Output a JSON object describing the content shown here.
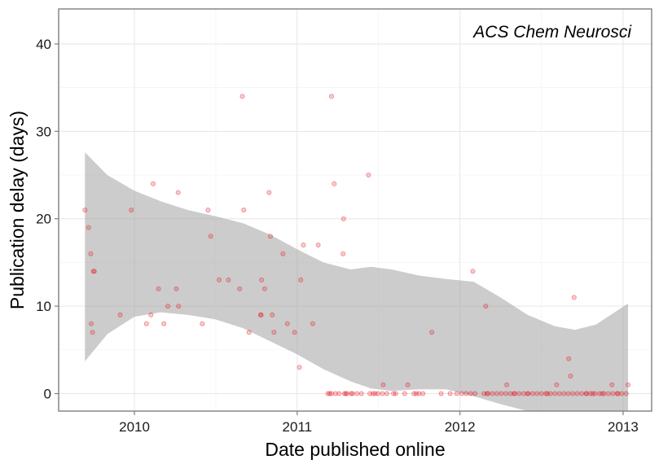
{
  "chart_data": {
    "type": "scatter",
    "title": "",
    "annotation": "ACS Chem Neurosci",
    "xlabel": "Date published online",
    "ylabel": "Publication delay (days)",
    "x_axis_type": "date",
    "xlim": [
      "2009-07-15",
      "2013-03-06"
    ],
    "ylim": [
      -2,
      44
    ],
    "x_ticks": [
      {
        "label": "2010",
        "value": "2010-01-01"
      },
      {
        "label": "2011",
        "value": "2011-01-01"
      },
      {
        "label": "2012",
        "value": "2012-01-01"
      },
      {
        "label": "2013",
        "value": "2013-01-01"
      }
    ],
    "y_ticks": [
      0,
      10,
      20,
      30,
      40
    ],
    "grid": true,
    "point_color": "#e8111e",
    "band_color": "#999999",
    "series": [
      {
        "x": [
          "2009-09-12",
          "2009-09-20",
          "2009-09-25",
          "2009-09-26",
          "2009-09-29",
          "2009-10-01",
          "2009-10-03",
          "2009-11-30",
          "2009-12-25",
          "2010-01-28",
          "2010-02-07",
          "2010-02-12",
          "2010-02-24",
          "2010-03-08",
          "2010-03-17",
          "2010-04-05",
          "2010-04-09",
          "2010-04-10",
          "2010-06-02",
          "2010-06-15",
          "2010-06-21",
          "2010-07-10",
          "2010-07-31",
          "2010-08-25",
          "2010-08-31",
          "2010-09-03",
          "2010-09-15",
          "2010-10-11",
          "2010-10-12",
          "2010-10-13",
          "2010-10-20",
          "2010-10-30",
          "2010-11-02",
          "2010-11-06",
          "2010-11-10",
          "2010-11-30",
          "2010-12-10",
          "2010-12-26",
          "2011-01-06",
          "2011-01-09",
          "2011-01-15",
          "2011-02-05",
          "2011-02-17",
          "2011-03-19",
          "2011-04-14",
          "2011-04-15",
          "2011-05-05",
          "2011-05-15",
          "2011-05-25",
          "2011-06-10",
          "2011-06-20",
          "2011-07-01",
          "2011-07-11",
          "2011-07-21",
          "2011-08-10",
          "2011-08-30",
          "2011-09-20",
          "2011-09-25",
          "2011-10-10",
          "2011-10-30",
          "2011-11-20",
          "2011-12-10",
          "2011-12-25",
          "2012-01-05",
          "2012-01-15",
          "2012-01-25",
          "2012-02-04",
          "2012-02-24",
          "2012-03-04",
          "2012-03-14",
          "2012-03-24",
          "2012-04-03",
          "2012-04-13",
          "2012-04-23",
          "2012-05-03",
          "2012-05-13",
          "2012-05-23",
          "2012-06-02",
          "2012-06-12",
          "2012-06-22",
          "2012-07-02",
          "2012-07-12",
          "2012-07-22",
          "2012-08-01",
          "2012-08-11",
          "2012-08-21",
          "2012-08-31",
          "2012-09-10",
          "2012-09-20",
          "2012-09-30",
          "2012-10-10",
          "2012-10-20",
          "2012-10-30",
          "2012-11-09",
          "2012-11-19",
          "2012-11-29",
          "2012-12-09",
          "2012-12-19",
          "2012-12-29",
          "2013-01-08",
          "2011-03-11",
          "2011-03-15",
          "2011-03-19",
          "2011-04-05",
          "2011-04-17",
          "2011-04-23",
          "2011-07-13",
          "2011-09-06",
          "2012-01-30",
          "2012-02-28",
          "2012-04-15",
          "2012-08-05",
          "2012-09-01",
          "2012-09-05",
          "2012-09-13",
          "2012-10-11",
          "2012-12-07",
          "2013-01-12",
          "2011-03-25",
          "2011-04-20",
          "2011-05-02",
          "2011-06-13",
          "2011-08-05",
          "2011-10-01",
          "2012-03-02",
          "2012-05-01",
          "2012-06-01",
          "2012-07-15",
          "2012-10-25",
          "2012-11-15",
          "2012-12-20",
          "2011-03-28",
          "2011-06-25"
        ],
        "y": [
          21,
          19,
          16,
          8,
          7,
          14,
          14,
          9,
          21,
          8,
          9,
          24,
          12,
          8,
          10,
          12,
          23,
          10,
          8,
          21,
          18,
          13,
          13,
          12,
          34,
          21,
          7,
          9,
          9,
          13,
          12,
          23,
          18,
          9,
          7,
          16,
          8,
          7,
          3,
          13,
          17,
          8,
          17,
          34,
          16,
          20,
          0,
          0,
          0,
          25,
          0,
          0,
          0,
          0,
          0,
          0,
          0,
          0,
          0,
          7,
          0,
          0,
          0,
          0,
          0,
          0,
          0,
          0,
          0,
          0,
          0,
          0,
          0,
          0,
          0,
          0,
          0,
          0,
          0,
          0,
          0,
          0,
          0,
          0,
          0,
          0,
          0,
          0,
          0,
          0,
          0,
          0,
          0,
          0,
          0,
          0,
          0,
          0,
          0,
          0,
          0,
          0,
          0,
          0,
          0,
          0,
          1,
          1,
          14,
          10,
          1,
          1,
          4,
          2,
          11,
          0,
          1,
          1,
          24,
          0,
          0,
          0,
          0,
          0,
          0,
          0,
          0,
          0,
          0,
          0,
          0,
          0,
          0
        ]
      }
    ],
    "smooth_band": {
      "x": [
        "2009-09-12",
        "2009-11-01",
        "2010-01-01",
        "2010-03-01",
        "2010-05-01",
        "2010-07-01",
        "2010-09-01",
        "2010-11-01",
        "2011-01-01",
        "2011-03-01",
        "2011-05-01",
        "2011-06-15",
        "2011-08-01",
        "2011-10-01",
        "2011-12-01",
        "2012-02-01",
        "2012-04-01",
        "2012-06-01",
        "2012-08-01",
        "2012-09-15",
        "2012-11-01",
        "2013-01-12"
      ],
      "upper": [
        27.6,
        25,
        23.2,
        22,
        21,
        20.3,
        19.5,
        18.2,
        16.5,
        15,
        14.2,
        14.5,
        14.2,
        13.5,
        13.1,
        12.8,
        11,
        9,
        7.7,
        7.3,
        7.9,
        10.3
      ],
      "lower": [
        3.7,
        6.8,
        8.8,
        9.3,
        9,
        8.5,
        7.5,
        6,
        4.5,
        2.8,
        1.4,
        0.6,
        0.3,
        0.5,
        0.5,
        -0.3,
        -1.2,
        -2,
        -2.5,
        -2.6,
        -2.5,
        -2.2
      ]
    }
  }
}
